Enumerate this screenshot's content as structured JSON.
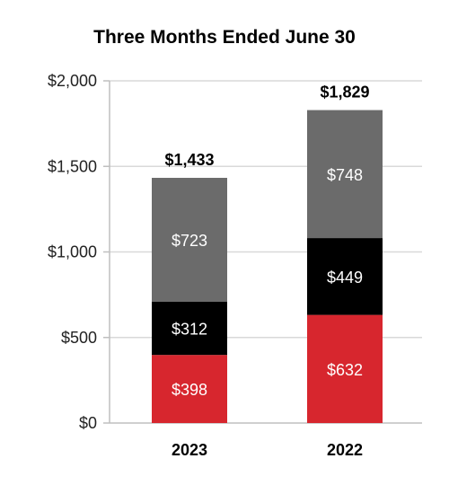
{
  "chart_data": {
    "type": "bar",
    "stacked": true,
    "title": "Three Months Ended June 30",
    "categories": [
      "2023",
      "2022"
    ],
    "series": [
      {
        "values": [
          398,
          632
        ],
        "labels": [
          "$398",
          "$632"
        ],
        "color": "#d7262e"
      },
      {
        "values": [
          312,
          449
        ],
        "labels": [
          "$312",
          "$449"
        ],
        "color": "#000000"
      },
      {
        "values": [
          723,
          748
        ],
        "labels": [
          "$723",
          "$748"
        ],
        "color": "#6b6b6b"
      }
    ],
    "totals": [
      1433,
      1829
    ],
    "total_labels": [
      "$1,433",
      "$1,829"
    ],
    "ylim": [
      0,
      2000
    ],
    "yticks": [
      0,
      500,
      1000,
      1500,
      2000
    ],
    "ytick_labels": [
      "$0",
      "$500",
      "$1,000",
      "$1,500",
      "$2,000"
    ],
    "grid": true,
    "gridline_color": "#d9d9d9"
  }
}
